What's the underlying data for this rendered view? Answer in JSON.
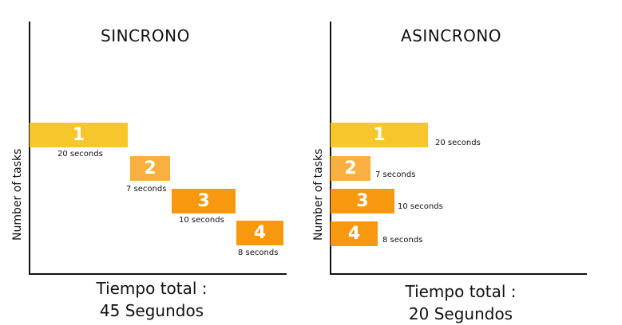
{
  "panels": {
    "sync": {
      "title": "SINCRONO",
      "ylabel": "Number of tasks",
      "tasks": [
        {
          "label": "1",
          "duration": "20 seconds"
        },
        {
          "label": "2",
          "duration": "7 seconds"
        },
        {
          "label": "3",
          "duration": "10 seconds"
        },
        {
          "label": "4",
          "duration": "8 seconds"
        }
      ],
      "total_line1": "Tiempo total :",
      "total_line2": "45 Segundos"
    },
    "async": {
      "title": "ASINCRONO",
      "ylabel": "Number of tasks",
      "tasks": [
        {
          "label": "1",
          "duration": "20 seconds"
        },
        {
          "label": "2",
          "duration": "7 seconds"
        },
        {
          "label": "3",
          "duration": "10 seconds"
        },
        {
          "label": "4",
          "duration": "8 seconds"
        }
      ],
      "total_line1": "Tiempo total :",
      "total_line2": "20 Segundos"
    }
  },
  "colors": {
    "task1": "#F6C62A",
    "task2": "#F9B040",
    "task3": "#F7980E",
    "task4": "#F7980E",
    "axis": "#111111"
  }
}
